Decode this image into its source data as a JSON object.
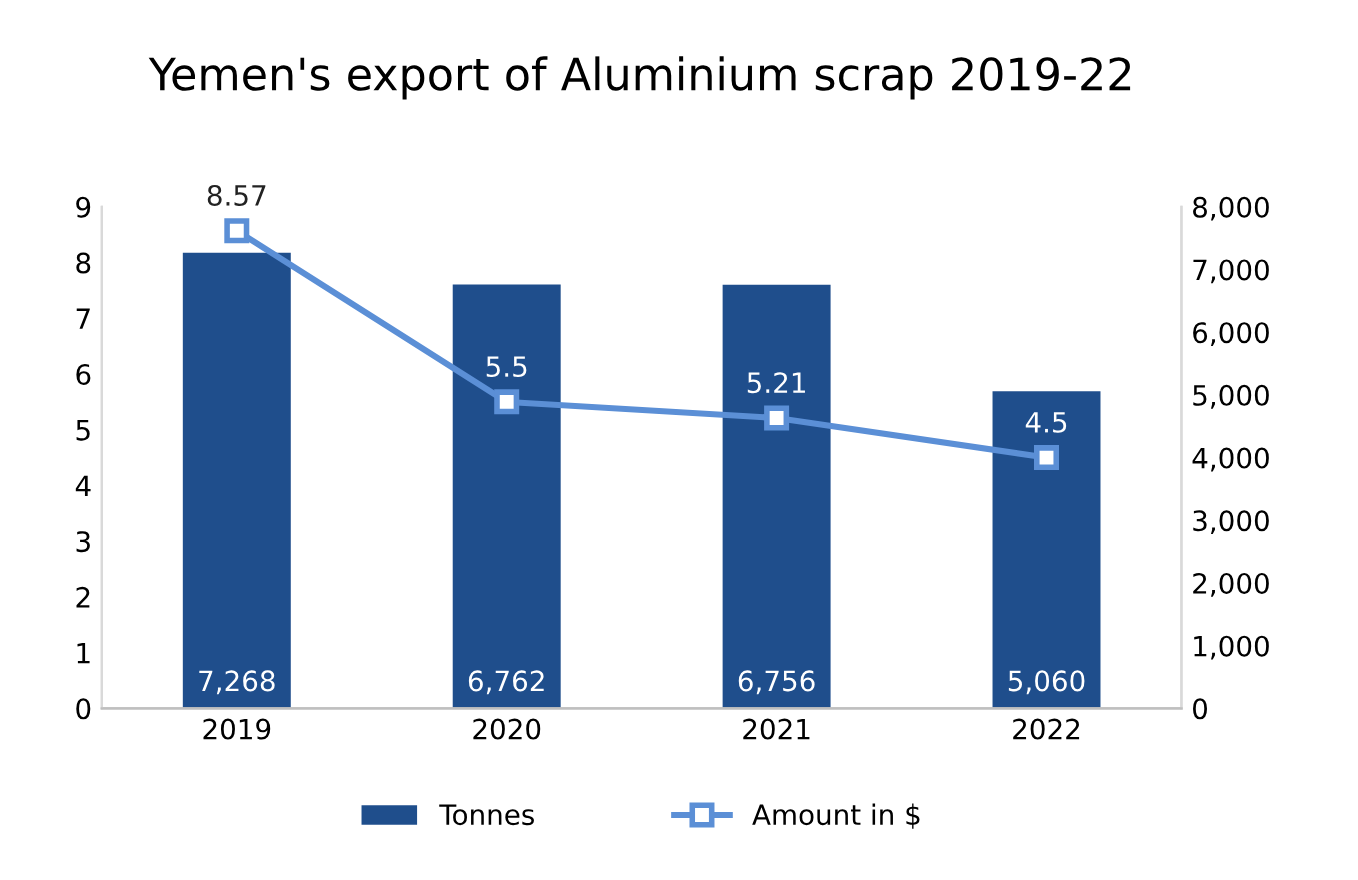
{
  "chart_data": {
    "type": "bar",
    "title": "Yemen's export of Aluminium scrap 2019-22",
    "categories": [
      "2019",
      "2020",
      "2021",
      "2022"
    ],
    "series": [
      {
        "name": "Tonnes",
        "axis": "y2",
        "color": "#1f4e8c",
        "values": [
          7268,
          6762,
          6756,
          5060
        ],
        "value_labels": [
          "7,268",
          "6,762",
          "6,756",
          "5,060"
        ]
      },
      {
        "name": "Amount in $",
        "type": "line",
        "axis": "y",
        "color": "#5b8fd6",
        "marker": "square",
        "values": [
          8.57,
          5.5,
          5.21,
          4.5
        ],
        "value_labels": [
          "8.57",
          "5.5",
          "5.21",
          "4.5"
        ]
      }
    ],
    "ylim": [
      0,
      9
    ],
    "yticks": [
      0,
      1,
      2,
      3,
      4,
      5,
      6,
      7,
      8,
      9
    ],
    "y2lim": [
      0,
      8000
    ],
    "y2ticks": [
      {
        "value": 0,
        "label": "0"
      },
      {
        "value": 1000,
        "label": "1,000"
      },
      {
        "value": 2000,
        "label": "2,000"
      },
      {
        "value": 3000,
        "label": "3,000"
      },
      {
        "value": 4000,
        "label": "4,000"
      },
      {
        "value": 5000,
        "label": "5,000"
      },
      {
        "value": 6000,
        "label": "6,000"
      },
      {
        "value": 7000,
        "label": "7,000"
      },
      {
        "value": 8000,
        "label": "8,000"
      }
    ],
    "grid": false,
    "legend": "bottom"
  }
}
